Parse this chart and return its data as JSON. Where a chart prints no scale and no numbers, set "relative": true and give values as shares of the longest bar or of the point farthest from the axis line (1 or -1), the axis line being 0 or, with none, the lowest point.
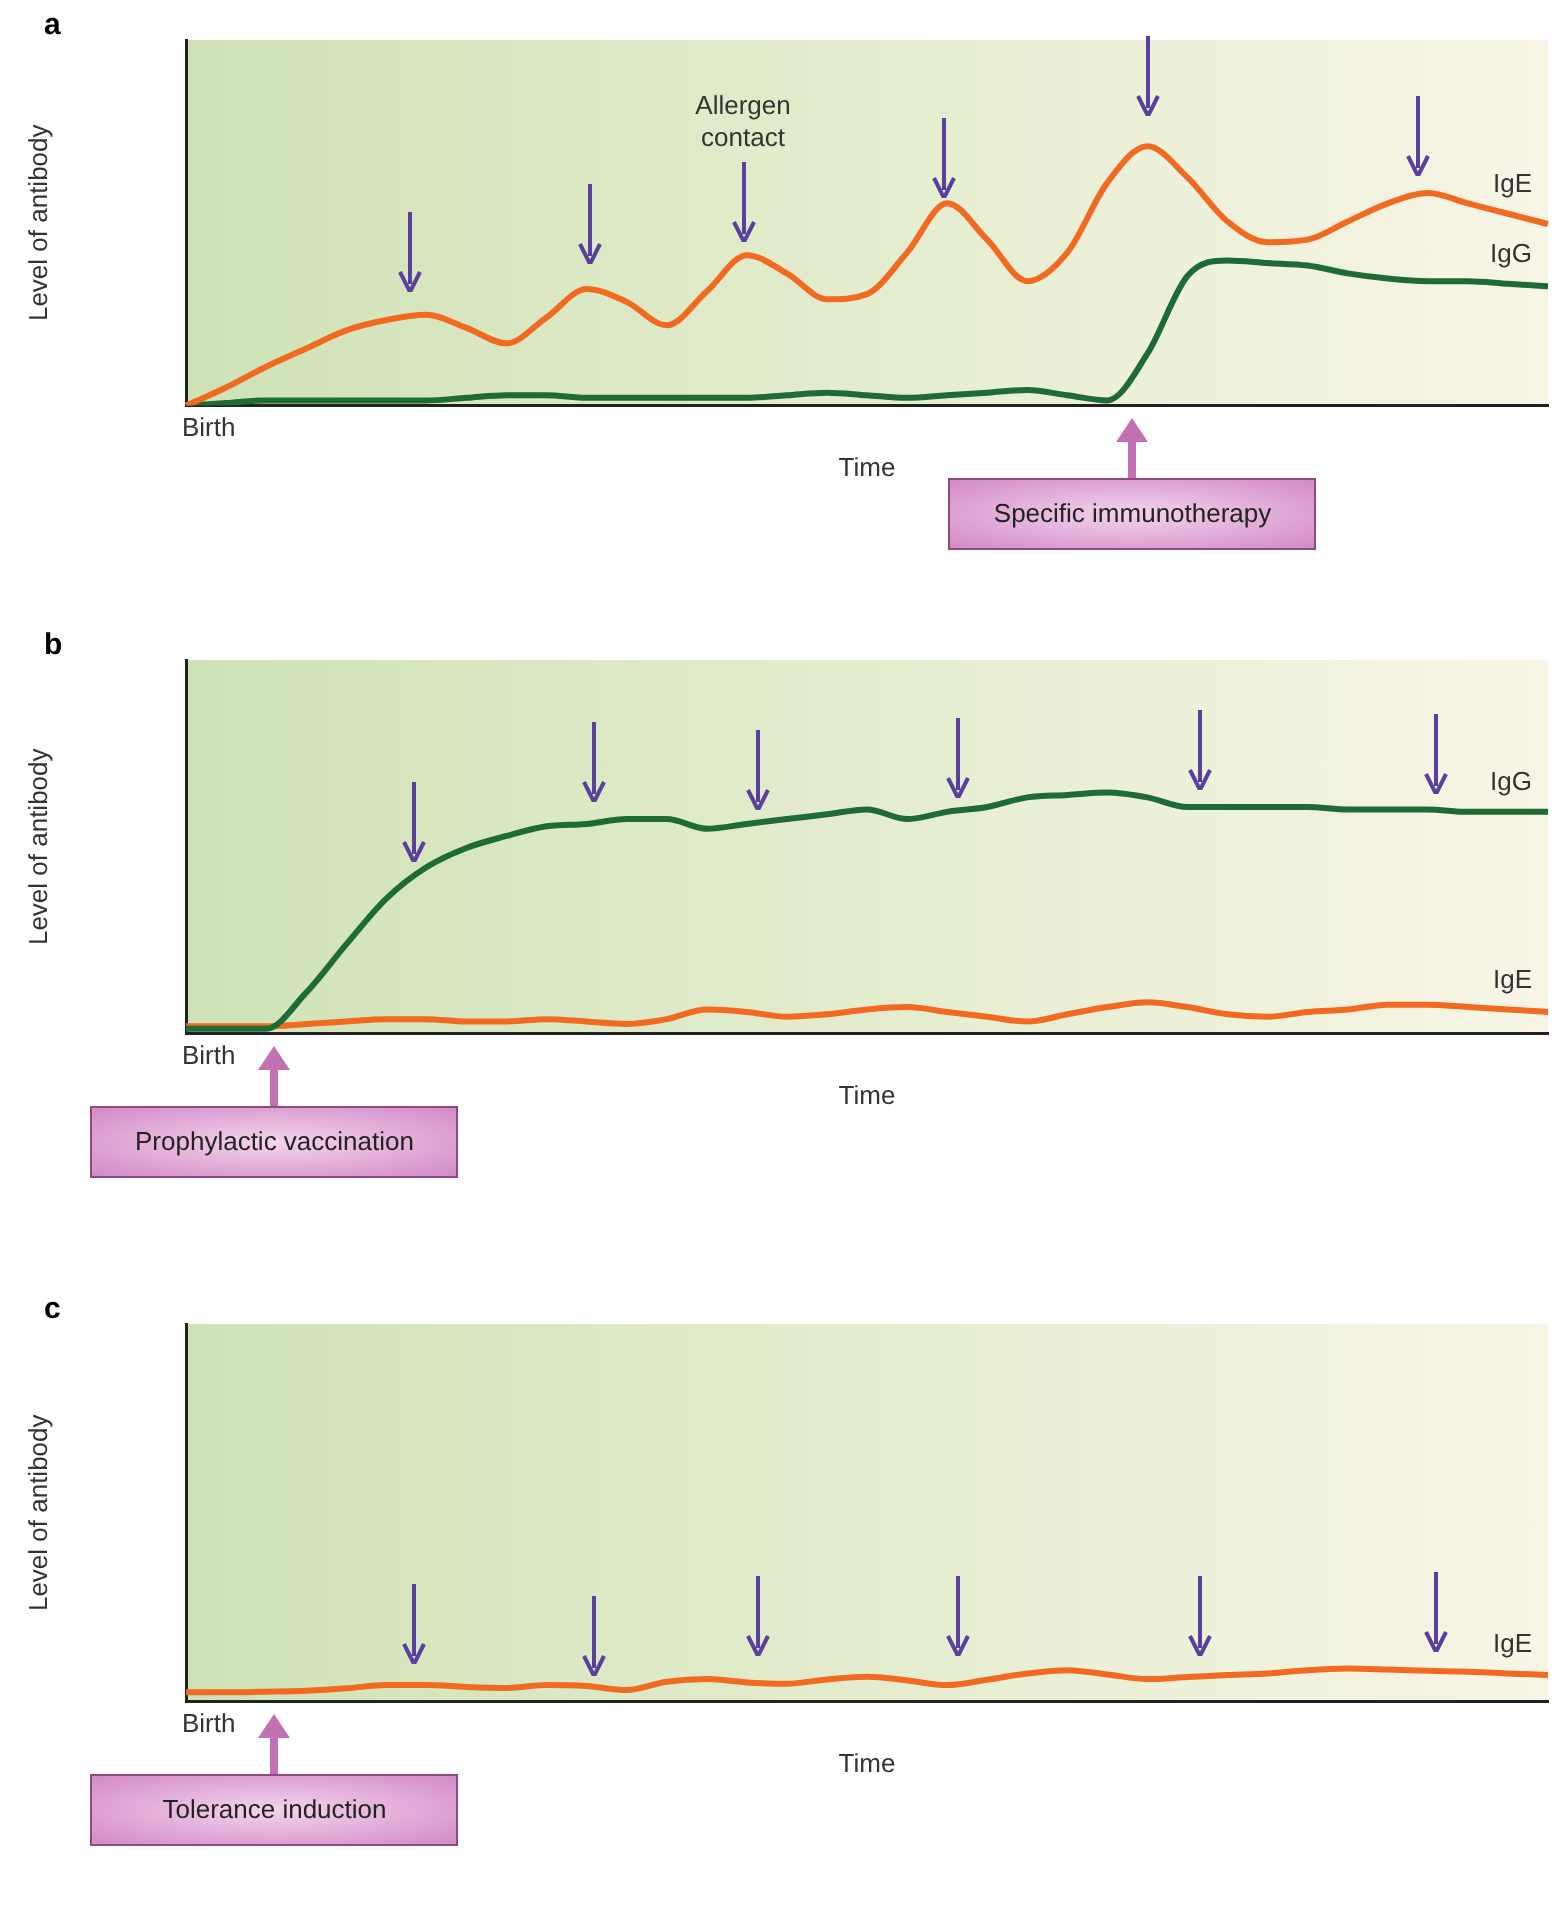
{
  "chart_data": [
    {
      "type": "line",
      "title": "a",
      "xlabel": "Time",
      "ylabel": "Level of antibody",
      "relative": true,
      "legend": false,
      "categories": [
        null,
        null,
        null,
        null,
        null,
        null,
        null,
        null,
        null,
        null,
        null,
        null,
        null,
        null,
        null,
        null,
        null,
        null,
        null,
        null,
        null,
        null,
        null,
        null,
        null,
        null,
        null,
        null,
        null,
        null,
        null,
        null,
        null,
        null,
        null
      ],
      "series": [
        {
          "name": "IgE",
          "color": "#f26a21",
          "values": [
            0,
            0.07,
            0.15,
            0.22,
            0.29,
            0.33,
            0.35,
            0.3,
            0.24,
            0.34,
            0.45,
            0.4,
            0.31,
            0.44,
            0.58,
            0.51,
            0.41,
            0.43,
            0.59,
            0.78,
            0.64,
            0.48,
            0.59,
            0.86,
            1,
            0.88,
            0.71,
            0.63,
            0.64,
            0.71,
            0.78,
            0.82,
            0.78,
            0.74,
            0.7
          ]
        },
        {
          "name": "IgG",
          "color": "#1e6b35",
          "values": [
            0,
            0.01,
            0.02,
            0.02,
            0.02,
            0.02,
            0.02,
            0.03,
            0.04,
            0.04,
            0.03,
            0.03,
            0.03,
            0.03,
            0.03,
            0.04,
            0.05,
            0.04,
            0.03,
            0.04,
            0.05,
            0.06,
            0.04,
            0.02,
            0.2,
            0.5,
            0.56,
            0.55,
            0.54,
            0.51,
            0.49,
            0.48,
            0.48,
            0.47,
            0.46
          ]
        }
      ],
      "annotations": [
        "Birth",
        "Allergen contact",
        "Specific immunotherapy"
      ]
    },
    {
      "type": "line",
      "title": "b",
      "xlabel": "Time",
      "ylabel": "Level of antibody",
      "relative": true,
      "legend": false,
      "categories": [
        null,
        null,
        null,
        null,
        null,
        null,
        null,
        null,
        null,
        null,
        null,
        null,
        null,
        null,
        null,
        null,
        null,
        null,
        null,
        null,
        null,
        null,
        null,
        null,
        null,
        null,
        null,
        null,
        null,
        null,
        null,
        null,
        null,
        null,
        null
      ],
      "series": [
        {
          "name": "IgG",
          "color": "#1e6b35",
          "values": [
            0.02,
            0.02,
            0.02,
            0.17,
            0.37,
            0.56,
            0.69,
            0.77,
            0.82,
            0.86,
            0.87,
            0.89,
            0.89,
            0.85,
            0.87,
            0.89,
            0.91,
            0.93,
            0.89,
            0.92,
            0.94,
            0.98,
            0.99,
            1,
            0.98,
            0.94,
            0.94,
            0.94,
            0.94,
            0.93,
            0.93,
            0.93,
            0.92,
            0.92,
            0.92
          ]
        },
        {
          "name": "IgE",
          "color": "#f26a21",
          "values": [
            0.03,
            0.03,
            0.03,
            0.04,
            0.05,
            0.06,
            0.06,
            0.05,
            0.05,
            0.06,
            0.05,
            0.04,
            0.06,
            0.1,
            0.09,
            0.07,
            0.08,
            0.1,
            0.11,
            0.09,
            0.07,
            0.05,
            0.08,
            0.11,
            0.13,
            0.11,
            0.08,
            0.07,
            0.09,
            0.1,
            0.12,
            0.12,
            0.11,
            0.1,
            0.09
          ]
        }
      ],
      "annotations": [
        "Birth",
        "Prophylactic vaccination"
      ]
    },
    {
      "type": "line",
      "title": "c",
      "xlabel": "Time",
      "ylabel": "Level of antibody",
      "relative": true,
      "legend": false,
      "categories": [
        null,
        null,
        null,
        null,
        null,
        null,
        null,
        null,
        null,
        null,
        null,
        null,
        null,
        null,
        null,
        null,
        null,
        null,
        null,
        null,
        null,
        null,
        null,
        null,
        null,
        null,
        null,
        null,
        null,
        null,
        null,
        null,
        null,
        null,
        null
      ],
      "series": [
        {
          "name": "IgE",
          "color": "#f26a21",
          "values": [
            0.28,
            0.28,
            0.3,
            0.33,
            0.4,
            0.5,
            0.5,
            0.44,
            0.41,
            0.5,
            0.47,
            0.35,
            0.6,
            0.68,
            0.58,
            0.54,
            0.67,
            0.75,
            0.64,
            0.5,
            0.66,
            0.85,
            0.95,
            0.82,
            0.68,
            0.74,
            0.8,
            0.85,
            0.95,
            1,
            0.97,
            0.93,
            0.9,
            0.85,
            0.8
          ]
        }
      ],
      "annotations": [
        "Birth",
        "Tolerance induction"
      ]
    }
  ]
}
